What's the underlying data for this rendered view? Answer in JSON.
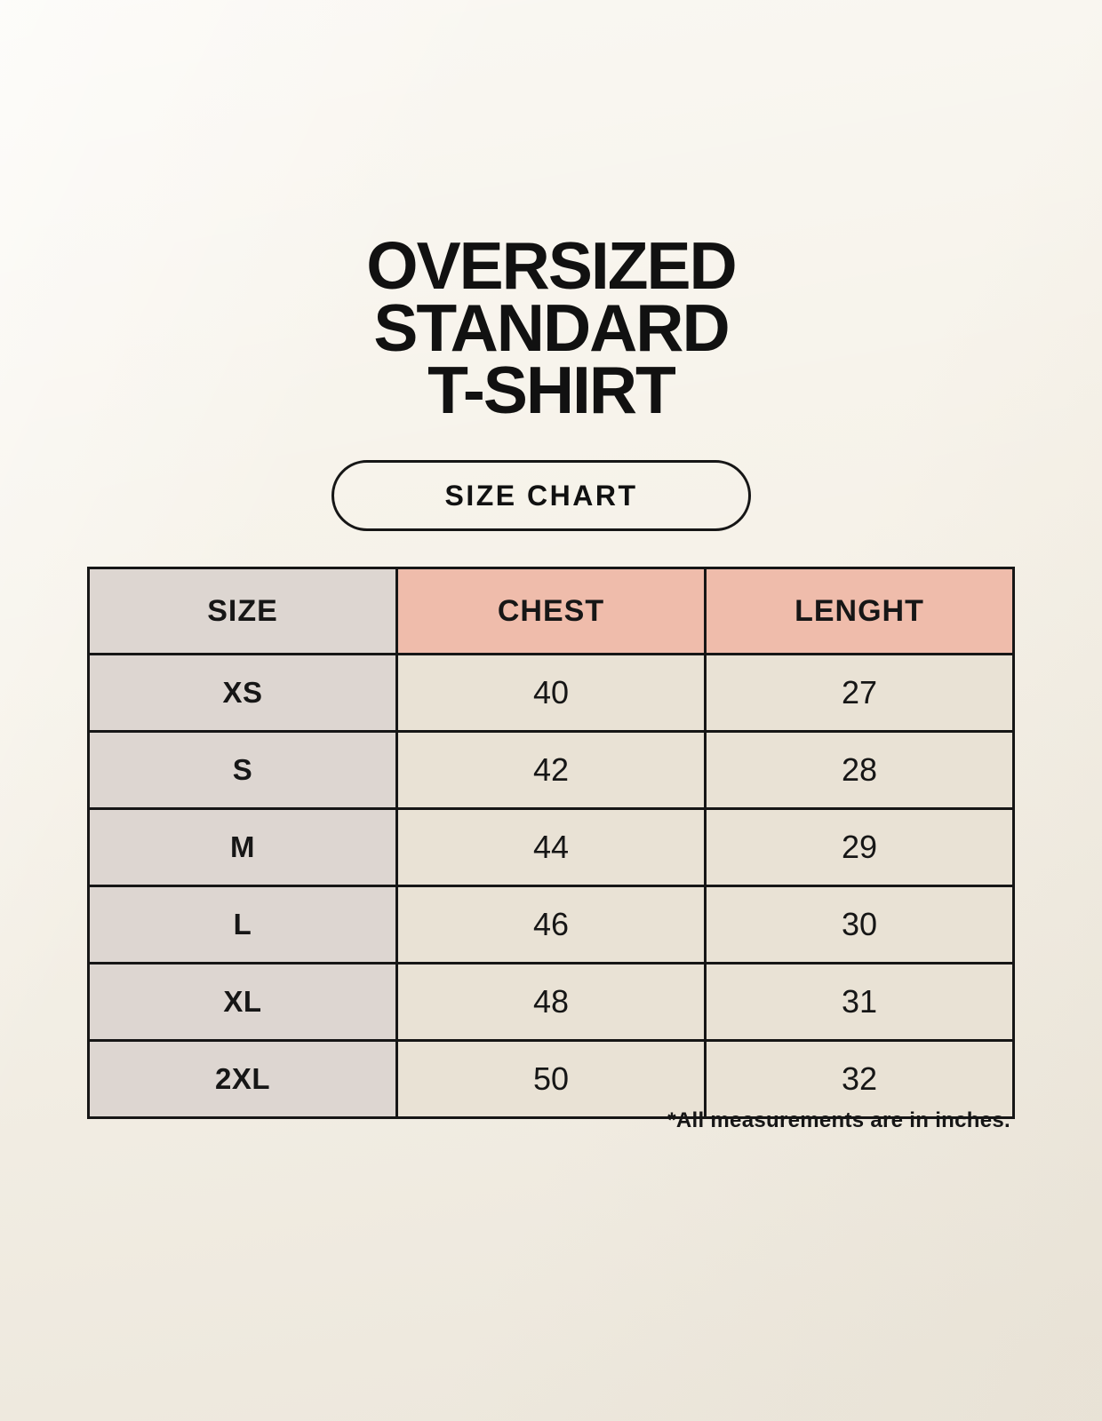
{
  "title": {
    "lines": [
      "OVERSIZED",
      "STANDARD",
      "T-SHIRT"
    ]
  },
  "size_chart_button": {
    "label": "SIZE CHART"
  },
  "chart_data": {
    "type": "table",
    "title": "OVERSIZED STANDARD T-SHIRT",
    "badge": "SIZE CHART",
    "columns": [
      "SIZE",
      "CHEST",
      "LENGHT"
    ],
    "rows": [
      [
        "XS",
        "40",
        "27"
      ],
      [
        "S",
        "42",
        "28"
      ],
      [
        "M",
        "44",
        "29"
      ],
      [
        "L",
        "46",
        "30"
      ],
      [
        "XL",
        "48",
        "31"
      ],
      [
        "2XL",
        "50",
        "32"
      ]
    ],
    "footnote": "*All measurements are in inches.",
    "units": "inches"
  },
  "colors": {
    "background": "#f6f2e9",
    "table_border": "#161616",
    "size_column_bg": "#ddd6d1",
    "accent_header_bg": "#efbcab",
    "value_cell_bg": "#e9e2d5",
    "text": "#161616"
  }
}
